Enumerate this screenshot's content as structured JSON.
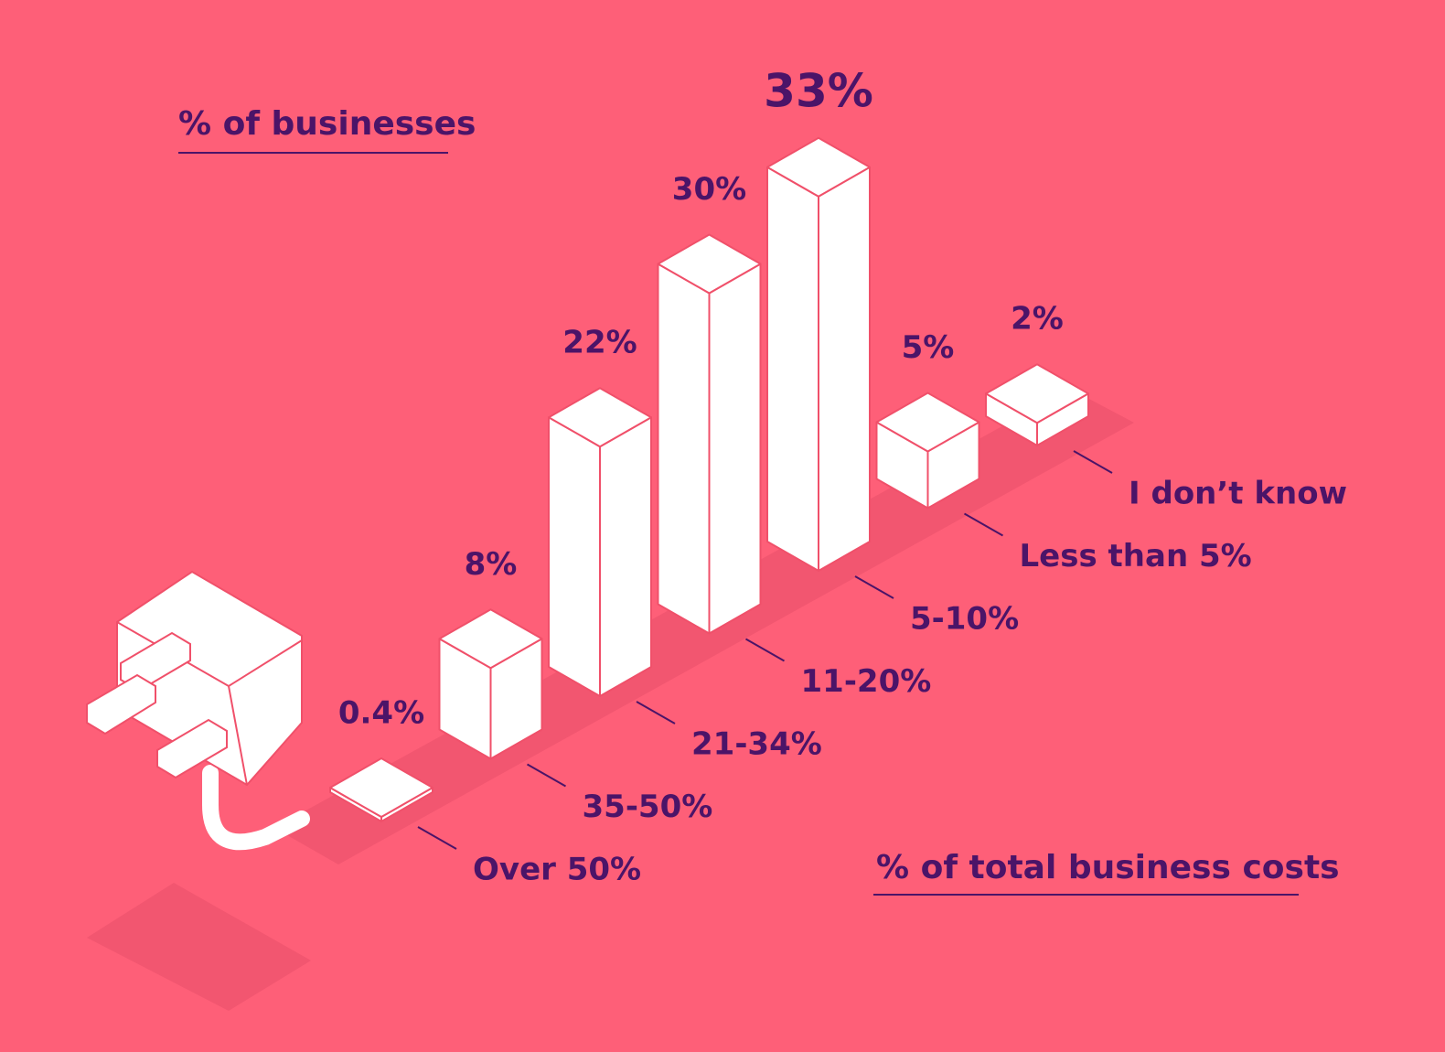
{
  "chart_data": {
    "type": "isometric-bar",
    "y_label": "% of businesses",
    "x_label": "% of total business costs",
    "categories": [
      "Over 50%",
      "35-50%",
      "21-34%",
      "11-20%",
      "5-10%",
      "Less than 5%",
      "I don’t know"
    ],
    "values": [
      0.4,
      8,
      22,
      30,
      33,
      5,
      2
    ],
    "value_labels": [
      "0.4%",
      "8%",
      "22%",
      "30%",
      "33%",
      "5%",
      "2%"
    ],
    "color": "#ffffff",
    "edge_color": "#f0506a"
  }
}
